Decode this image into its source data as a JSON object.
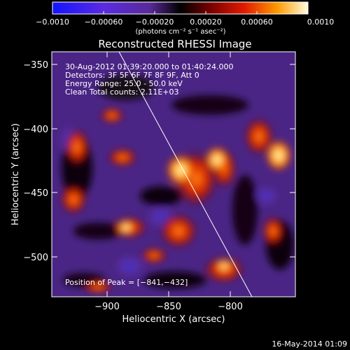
{
  "colorbar": {
    "tick_labels": [
      "−0.0010",
      "−0.00060",
      "−0.00020",
      "0.00020",
      "0.00060",
      "0.0010"
    ],
    "unit_label": "(photons cm⁻² s⁻¹ asec⁻²)"
  },
  "title": "Reconstructed RHESSI Image",
  "annotations": {
    "time_range": "30-Aug-2012 01:39:20.000 to 01:40:24.000",
    "detectors": "Detectors: 3F 5F 6F 7F 8F 9F, Att 0",
    "energy": "Energy Range: 25.0 - 50.0 keV",
    "clean": "Clean    Total counts: 2.11E+03",
    "peak": "Position of Peak = [−841,−432]"
  },
  "axes": {
    "xlabel": "Heliocentric X (arcsec)",
    "ylabel": "Heliocentric Y (arcsec)",
    "x_ticks": [
      "−900",
      "−850",
      "−800"
    ],
    "y_ticks": [
      "−350",
      "−400",
      "−450",
      "−500"
    ]
  },
  "footer": {
    "date": "16-May-2014 01:09"
  }
}
